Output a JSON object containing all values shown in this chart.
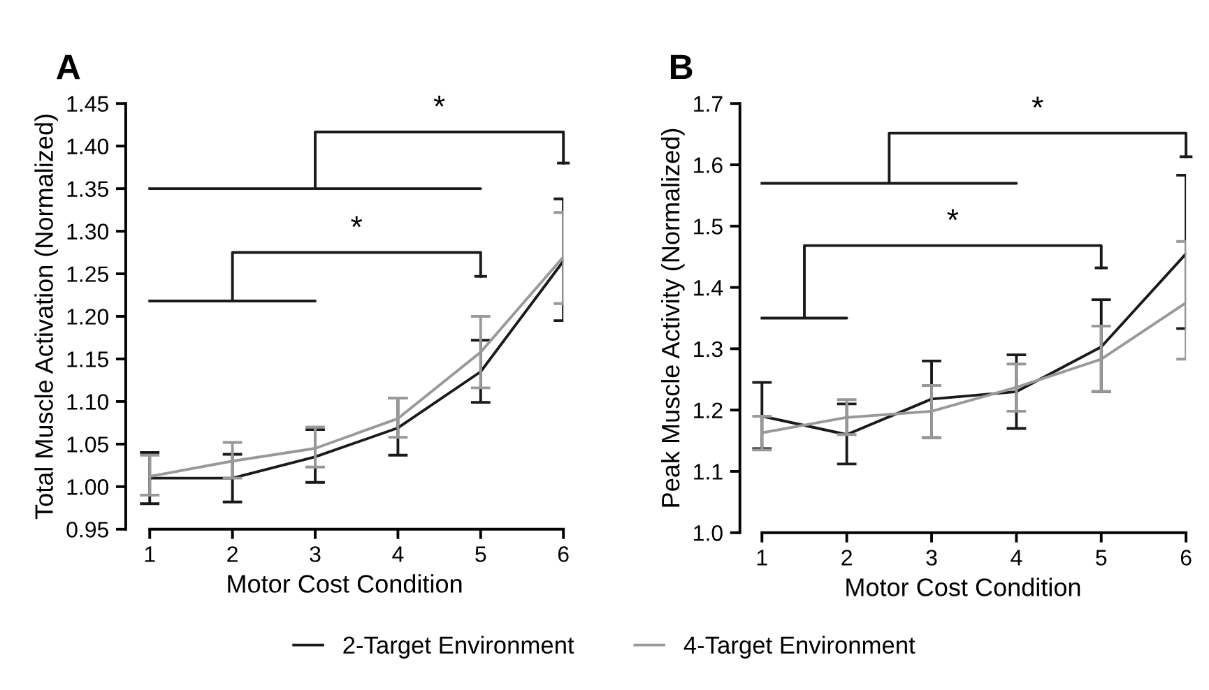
{
  "chart_data": [
    {
      "type": "line",
      "title": "A",
      "xlabel": "Motor Cost Condition",
      "ylabel": "Total Muscle Activation (Normalized)",
      "x": [
        1,
        2,
        3,
        4,
        5,
        6
      ],
      "xlim": [
        0.71,
        6.0
      ],
      "xticks": [
        1,
        2,
        3,
        4,
        5,
        6
      ],
      "ylim": [
        0.95,
        1.45
      ],
      "yticks": [
        {
          "value": 0.95,
          "label": "0.95"
        },
        {
          "value": 1.0,
          "label": "1.00"
        },
        {
          "value": 1.05,
          "label": "1.05"
        },
        {
          "value": 1.1,
          "label": "1.10"
        },
        {
          "value": 1.15,
          "label": "1.15"
        },
        {
          "value": 1.2,
          "label": "1.20"
        },
        {
          "value": 1.25,
          "label": "1.25"
        },
        {
          "value": 1.3,
          "label": "1.30"
        },
        {
          "value": 1.35,
          "label": "1.35"
        },
        {
          "value": 1.4,
          "label": "1.40"
        },
        {
          "value": 1.45,
          "label": "1.45"
        }
      ],
      "series": [
        {
          "name": "2-Target Environment",
          "color": "#1a1a1a",
          "values": [
            1.01,
            1.01,
            1.035,
            1.069,
            1.135,
            1.265
          ],
          "errors": [
            [
              0.98,
              1.04
            ],
            [
              0.982,
              1.038
            ],
            [
              1.005,
              1.067
            ],
            [
              1.037,
              1.104
            ],
            [
              1.099,
              1.172
            ],
            [
              1.195,
              1.338
            ]
          ]
        },
        {
          "name": "4-Target Environment",
          "color": "#999999",
          "values": [
            1.012,
            1.03,
            1.045,
            1.08,
            1.158,
            1.27
          ],
          "errors": [
            [
              0.99,
              1.037
            ],
            [
              1.01,
              1.052
            ],
            [
              1.023,
              1.07
            ],
            [
              1.058,
              1.104
            ],
            [
              1.116,
              1.2
            ],
            [
              1.215,
              1.322
            ]
          ]
        }
      ],
      "annotations": [
        "*",
        "*"
      ],
      "grid": false,
      "legend": "bottom",
      "marker": "none",
      "line_style": "solid"
    },
    {
      "type": "line",
      "title": "B",
      "xlabel": "Motor Cost Condition",
      "ylabel": "Peak Muscle Activity (Normalized)",
      "x": [
        1,
        2,
        3,
        4,
        5,
        6
      ],
      "xlim": [
        0.74,
        6.0
      ],
      "xticks": [
        1,
        2,
        3,
        4,
        5,
        6
      ],
      "ylim": [
        1.0,
        1.7
      ],
      "yticks": [
        {
          "value": 1.0,
          "label": "1.0"
        },
        {
          "value": 1.1,
          "label": "1.1"
        },
        {
          "value": 1.2,
          "label": "1.2"
        },
        {
          "value": 1.3,
          "label": "1.3"
        },
        {
          "value": 1.4,
          "label": "1.4"
        },
        {
          "value": 1.5,
          "label": "1.5"
        },
        {
          "value": 1.6,
          "label": "1.6"
        },
        {
          "value": 1.7,
          "label": "1.7"
        }
      ],
      "series": [
        {
          "color": "#1a1a1a",
          "values": [
            1.19,
            1.16,
            1.218,
            1.23,
            1.303,
            1.455
          ],
          "errors": [
            [
              1.137,
              1.245
            ],
            [
              1.112,
              1.21
            ],
            [
              1.155,
              1.28
            ],
            [
              1.17,
              1.29
            ],
            [
              1.23,
              1.38
            ],
            [
              1.333,
              1.583
            ]
          ]
        },
        {
          "color": "#999999",
          "values": [
            1.163,
            1.188,
            1.198,
            1.237,
            1.283,
            1.375
          ],
          "errors": [
            [
              1.135,
              1.19
            ],
            [
              1.16,
              1.217
            ],
            [
              1.155,
              1.24
            ],
            [
              1.198,
              1.275
            ],
            [
              1.23,
              1.337
            ],
            [
              1.283,
              1.475
            ]
          ]
        }
      ],
      "annotations": [
        "*",
        "*"
      ],
      "grid": false,
      "marker": "none",
      "line_style": "solid"
    }
  ]
}
